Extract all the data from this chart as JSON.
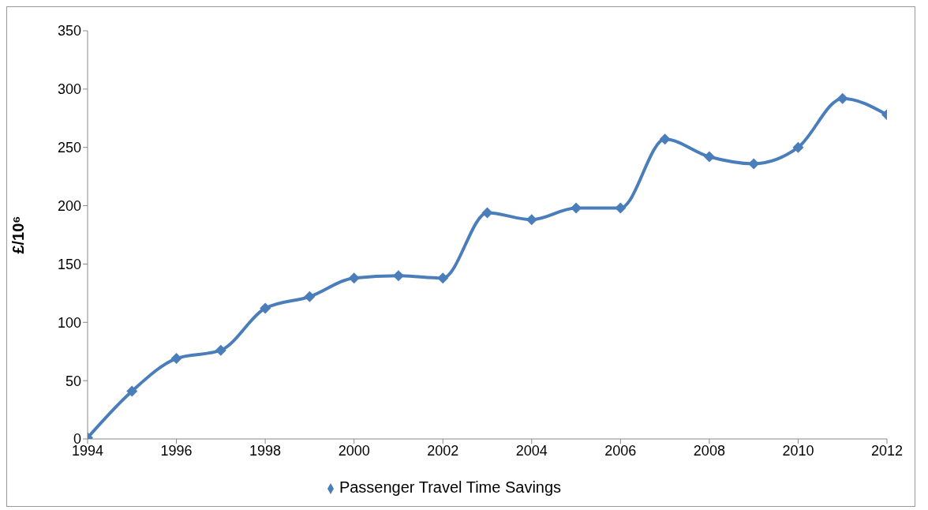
{
  "chart_data": {
    "type": "line",
    "ylabel": "£/10⁶",
    "x": [
      1994,
      1995,
      1996,
      1997,
      1998,
      1999,
      2000,
      2001,
      2002,
      2003,
      2004,
      2005,
      2006,
      2007,
      2008,
      2009,
      2010,
      2011,
      2012
    ],
    "series": [
      {
        "name": "Passenger Travel Time Savings",
        "color": "#4a7ebb",
        "values": [
          1,
          41,
          69,
          76,
          112,
          122,
          138,
          140,
          138,
          194,
          188,
          198,
          198,
          257,
          242,
          236,
          250,
          292,
          278
        ]
      }
    ],
    "xlim": [
      1994,
      2012
    ],
    "xticks": [
      1994,
      1996,
      1998,
      2000,
      2002,
      2004,
      2006,
      2008,
      2010,
      2012
    ],
    "ylim": [
      0,
      350
    ],
    "yticks": [
      0,
      50,
      100,
      150,
      200,
      250,
      300,
      350
    ],
    "grid": false,
    "legend": "bottom",
    "marker": "diamond",
    "line_style": "solid"
  }
}
